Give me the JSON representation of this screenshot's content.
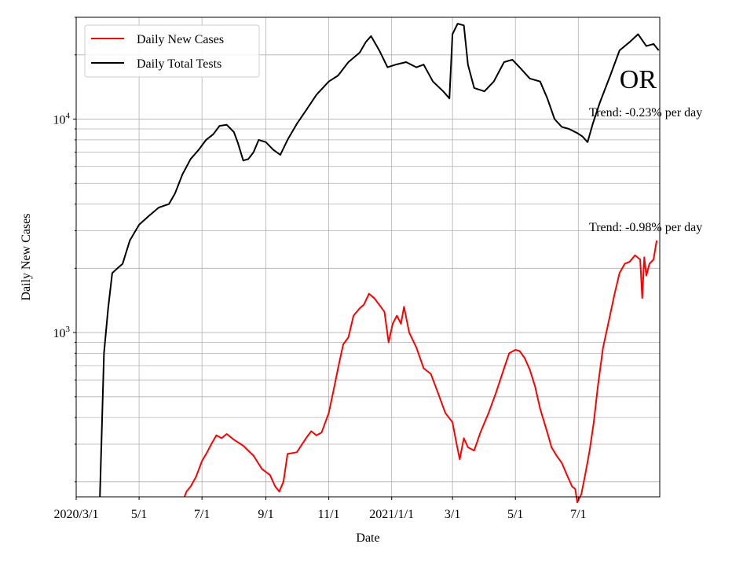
{
  "chart_data": {
    "type": "line",
    "xlabel": "Date",
    "ylabel": "Daily New Cases",
    "yscale": "log",
    "ylim": [
      170,
      30000
    ],
    "xlim": [
      "2020-03-01",
      "2021-09-18"
    ],
    "grid": true,
    "legend": {
      "position": "top-left"
    },
    "x_ticks": [
      {
        "date": "2020-03-01",
        "label": "2020/3/1"
      },
      {
        "date": "2020-05-01",
        "label": "5/1"
      },
      {
        "date": "2020-07-01",
        "label": "7/1"
      },
      {
        "date": "2020-09-01",
        "label": "9/1"
      },
      {
        "date": "2020-11-01",
        "label": "11/1"
      },
      {
        "date": "2021-01-01",
        "label": "2021/1/1"
      },
      {
        "date": "2021-03-01",
        "label": "3/1"
      },
      {
        "date": "2021-05-01",
        "label": "5/1"
      },
      {
        "date": "2021-07-01",
        "label": "7/1"
      }
    ],
    "y_ticks": [
      {
        "value": 1000,
        "base": "10",
        "exp": "3"
      },
      {
        "value": 10000,
        "base": "10",
        "exp": "4"
      }
    ],
    "state_label": "OR",
    "annotations": [
      {
        "text": "Trend: -0.23% per day",
        "series": "Daily Total Tests"
      },
      {
        "text": "Trend: -0.98% per day",
        "series": "Daily New Cases"
      }
    ],
    "series": [
      {
        "name": "Daily New Cases",
        "color": "#ff0000",
        "points": [
          [
            "2020-06-14",
            170
          ],
          [
            "2020-06-16",
            180
          ],
          [
            "2020-06-20",
            190
          ],
          [
            "2020-06-25",
            210
          ],
          [
            "2020-07-01",
            250
          ],
          [
            "2020-07-06",
            275
          ],
          [
            "2020-07-10",
            300
          ],
          [
            "2020-07-15",
            330
          ],
          [
            "2020-07-20",
            320
          ],
          [
            "2020-07-25",
            335
          ],
          [
            "2020-08-01",
            315
          ],
          [
            "2020-08-10",
            295
          ],
          [
            "2020-08-20",
            265
          ],
          [
            "2020-08-28",
            230
          ],
          [
            "2020-09-05",
            215
          ],
          [
            "2020-09-10",
            190
          ],
          [
            "2020-09-14",
            180
          ],
          [
            "2020-09-18",
            200
          ],
          [
            "2020-09-22",
            270
          ],
          [
            "2020-10-01",
            275
          ],
          [
            "2020-10-10",
            320
          ],
          [
            "2020-10-15",
            345
          ],
          [
            "2020-10-20",
            330
          ],
          [
            "2020-10-25",
            340
          ],
          [
            "2020-11-01",
            420
          ],
          [
            "2020-11-05",
            520
          ],
          [
            "2020-11-10",
            680
          ],
          [
            "2020-11-15",
            880
          ],
          [
            "2020-11-20",
            950
          ],
          [
            "2020-11-25",
            1200
          ],
          [
            "2020-12-01",
            1300
          ],
          [
            "2020-12-05",
            1350
          ],
          [
            "2020-12-10",
            1520
          ],
          [
            "2020-12-15",
            1450
          ],
          [
            "2020-12-20",
            1350
          ],
          [
            "2020-12-25",
            1250
          ],
          [
            "2020-12-29",
            900
          ],
          [
            "2021-01-02",
            1100
          ],
          [
            "2021-01-06",
            1200
          ],
          [
            "2021-01-10",
            1100
          ],
          [
            "2021-01-13",
            1320
          ],
          [
            "2021-01-18",
            1000
          ],
          [
            "2021-01-25",
            850
          ],
          [
            "2021-02-01",
            680
          ],
          [
            "2021-02-08",
            640
          ],
          [
            "2021-02-15",
            520
          ],
          [
            "2021-02-22",
            420
          ],
          [
            "2021-03-01",
            380
          ],
          [
            "2021-03-05",
            300
          ],
          [
            "2021-03-08",
            255
          ],
          [
            "2021-03-12",
            320
          ],
          [
            "2021-03-16",
            290
          ],
          [
            "2021-03-22",
            280
          ],
          [
            "2021-03-28",
            340
          ],
          [
            "2021-04-05",
            420
          ],
          [
            "2021-04-12",
            520
          ],
          [
            "2021-04-20",
            680
          ],
          [
            "2021-04-25",
            800
          ],
          [
            "2021-05-01",
            830
          ],
          [
            "2021-05-05",
            820
          ],
          [
            "2021-05-10",
            760
          ],
          [
            "2021-05-15",
            670
          ],
          [
            "2021-05-20",
            560
          ],
          [
            "2021-05-25",
            440
          ],
          [
            "2021-06-01",
            340
          ],
          [
            "2021-06-05",
            290
          ],
          [
            "2021-06-10",
            265
          ],
          [
            "2021-06-15",
            245
          ],
          [
            "2021-06-20",
            215
          ],
          [
            "2021-06-25",
            190
          ],
          [
            "2021-06-28",
            185
          ],
          [
            "2021-06-30",
            160
          ],
          [
            "2021-07-04",
            175
          ],
          [
            "2021-07-08",
            220
          ],
          [
            "2021-07-12",
            280
          ],
          [
            "2021-07-16",
            380
          ],
          [
            "2021-07-20",
            560
          ],
          [
            "2021-07-25",
            850
          ],
          [
            "2021-07-30",
            1100
          ],
          [
            "2021-08-05",
            1500
          ],
          [
            "2021-08-10",
            1900
          ],
          [
            "2021-08-15",
            2100
          ],
          [
            "2021-08-20",
            2150
          ],
          [
            "2021-08-25",
            2300
          ],
          [
            "2021-08-30",
            2200
          ],
          [
            "2021-09-01",
            1450
          ],
          [
            "2021-09-03",
            2250
          ],
          [
            "2021-09-05",
            1850
          ],
          [
            "2021-09-08",
            2100
          ],
          [
            "2021-09-12",
            2200
          ],
          [
            "2021-09-15",
            2700
          ]
        ]
      },
      {
        "name": "Daily Total Tests",
        "color": "#000000",
        "points": [
          [
            "2020-03-24",
            170
          ],
          [
            "2020-03-28",
            800
          ],
          [
            "2020-04-01",
            1300
          ],
          [
            "2020-04-05",
            1900
          ],
          [
            "2020-04-10",
            2000
          ],
          [
            "2020-04-15",
            2100
          ],
          [
            "2020-04-22",
            2700
          ],
          [
            "2020-05-01",
            3200
          ],
          [
            "2020-05-10",
            3500
          ],
          [
            "2020-05-20",
            3850
          ],
          [
            "2020-05-30",
            4000
          ],
          [
            "2020-06-05",
            4500
          ],
          [
            "2020-06-12",
            5500
          ],
          [
            "2020-06-20",
            6500
          ],
          [
            "2020-06-28",
            7200
          ],
          [
            "2020-07-05",
            8000
          ],
          [
            "2020-07-12",
            8500
          ],
          [
            "2020-07-18",
            9300
          ],
          [
            "2020-07-25",
            9400
          ],
          [
            "2020-08-01",
            8700
          ],
          [
            "2020-08-05",
            7700
          ],
          [
            "2020-08-10",
            6400
          ],
          [
            "2020-08-15",
            6500
          ],
          [
            "2020-08-20",
            7000
          ],
          [
            "2020-08-25",
            8000
          ],
          [
            "2020-09-01",
            7800
          ],
          [
            "2020-09-08",
            7200
          ],
          [
            "2020-09-15",
            6800
          ],
          [
            "2020-09-22",
            8000
          ],
          [
            "2020-10-01",
            9500
          ],
          [
            "2020-10-10",
            11000
          ],
          [
            "2020-10-20",
            13000
          ],
          [
            "2020-11-01",
            15000
          ],
          [
            "2020-11-10",
            16000
          ],
          [
            "2020-11-20",
            18500
          ],
          [
            "2020-12-01",
            20500
          ],
          [
            "2020-12-07",
            23000
          ],
          [
            "2020-12-12",
            24500
          ],
          [
            "2020-12-20",
            21000
          ],
          [
            "2020-12-28",
            17500
          ],
          [
            "2021-01-05",
            18000
          ],
          [
            "2021-01-15",
            18500
          ],
          [
            "2021-01-25",
            17500
          ],
          [
            "2021-02-01",
            18000
          ],
          [
            "2021-02-10",
            15000
          ],
          [
            "2021-02-20",
            13500
          ],
          [
            "2021-02-26",
            12500
          ],
          [
            "2021-03-01",
            25000
          ],
          [
            "2021-03-06",
            28000
          ],
          [
            "2021-03-12",
            27500
          ],
          [
            "2021-03-16",
            18000
          ],
          [
            "2021-03-22",
            14000
          ],
          [
            "2021-04-01",
            13500
          ],
          [
            "2021-04-10",
            15000
          ],
          [
            "2021-04-20",
            18500
          ],
          [
            "2021-04-28",
            19000
          ],
          [
            "2021-05-05",
            17500
          ],
          [
            "2021-05-15",
            15500
          ],
          [
            "2021-05-25",
            15000
          ],
          [
            "2021-06-01",
            12500
          ],
          [
            "2021-06-08",
            10000
          ],
          [
            "2021-06-15",
            9200
          ],
          [
            "2021-06-22",
            9000
          ],
          [
            "2021-06-30",
            8600
          ],
          [
            "2021-07-05",
            8300
          ],
          [
            "2021-07-10",
            7800
          ],
          [
            "2021-07-15",
            9500
          ],
          [
            "2021-07-22",
            12000
          ],
          [
            "2021-08-01",
            16000
          ],
          [
            "2021-08-10",
            21000
          ],
          [
            "2021-08-20",
            23000
          ],
          [
            "2021-08-28",
            25000
          ],
          [
            "2021-09-05",
            22000
          ],
          [
            "2021-09-12",
            22500
          ],
          [
            "2021-09-17",
            21000
          ]
        ]
      }
    ]
  }
}
